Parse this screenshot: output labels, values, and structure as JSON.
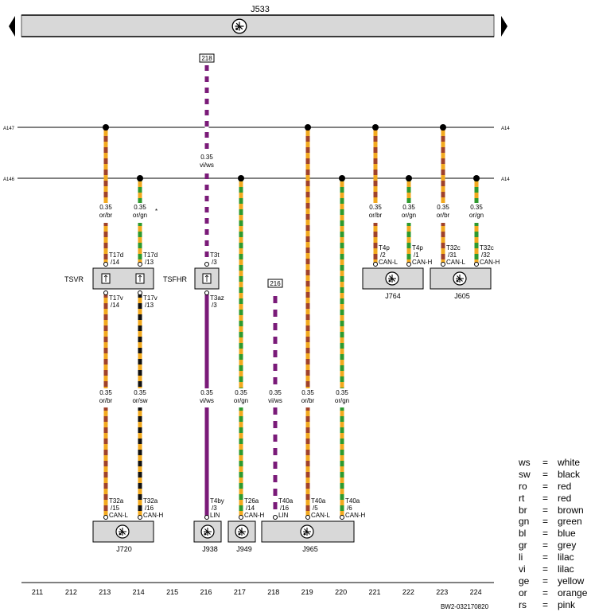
{
  "colors": {
    "or": "#f2a91e",
    "br": "#a0422a",
    "gn": "#2e9a2e",
    "sw": "#111111",
    "vi": "#7a1a78",
    "ws": "#ffffff",
    "box": "#d8d8d8"
  },
  "bus": {
    "label": "J533"
  },
  "refs": {
    "r218": "218",
    "r216": "216"
  },
  "lines": {
    "A147": {
      "left": "A147",
      "right": "A14"
    },
    "A146": {
      "left": "A146",
      "right": "A14"
    }
  },
  "wires": {
    "w213a": {
      "size": "0.35",
      "color": "or/br"
    },
    "w214a": {
      "size": "0.35",
      "color": "or/gn"
    },
    "w216top": {
      "size": "0.35",
      "color": "vi/ws"
    },
    "w221": {
      "size": "0.35",
      "color": "or/br"
    },
    "w222": {
      "size": "0.35",
      "color": "or/gn"
    },
    "w223": {
      "size": "0.35",
      "color": "or/br"
    },
    "w224": {
      "size": "0.35",
      "color": "or/gn"
    },
    "w213b": {
      "size": "0.35",
      "color": "or/br"
    },
    "w214b": {
      "size": "0.35",
      "color": "or/sw"
    },
    "w216b": {
      "size": "0.35",
      "color": "vi/ws"
    },
    "w217": {
      "size": "0.35",
      "color": "or/gn"
    },
    "w218": {
      "size": "0.35",
      "color": "vi/ws"
    },
    "w219": {
      "size": "0.35",
      "color": "or/br"
    },
    "w220": {
      "size": "0.35",
      "color": "or/gn"
    }
  },
  "pins": {
    "p213top": {
      "name": "T17d",
      "num": "/14"
    },
    "p214top": {
      "name": "T17d",
      "num": "/13"
    },
    "p216top": {
      "name": "T3t",
      "num": "/3"
    },
    "p213bot": {
      "name": "T17v",
      "num": "/14"
    },
    "p214bot": {
      "name": "T17v",
      "num": "/13"
    },
    "p216mid": {
      "name": "T3az",
      "num": "/3"
    },
    "p221": {
      "name": "T4p",
      "num": "/2",
      "sig": "CAN-L"
    },
    "p222": {
      "name": "T4p",
      "num": "/1",
      "sig": "CAN-H"
    },
    "p223": {
      "name": "T32c",
      "num": "/31",
      "sig": "CAN-L"
    },
    "p224": {
      "name": "T32c",
      "num": "/32",
      "sig": "CAN-H"
    },
    "p213low": {
      "name": "T32a",
      "num": "/15",
      "sig": "CAN-L"
    },
    "p214low": {
      "name": "T32a",
      "num": "/16",
      "sig": "CAN-H"
    },
    "p216low": {
      "name": "T4by",
      "num": "/3",
      "sig": "LIN"
    },
    "p217low": {
      "name": "T26a",
      "num": "/14",
      "sig": "CAN-H"
    },
    "p218low": {
      "name": "T40a",
      "num": "/16",
      "sig": "LIN"
    },
    "p219low": {
      "name": "T40a",
      "num": "/5",
      "sig": "CAN-L"
    },
    "p220low": {
      "name": "T40a",
      "num": "/6",
      "sig": "CAN-H"
    }
  },
  "components": {
    "tsvr": "TSVR",
    "tsfhr": "TSFHR",
    "j764": "J764",
    "j605": "J605",
    "j720": "J720",
    "j938": "J938",
    "j949": "J949",
    "j965": "J965"
  },
  "columns": [
    "211",
    "212",
    "213",
    "214",
    "215",
    "216",
    "217",
    "218",
    "219",
    "220",
    "221",
    "222",
    "223",
    "224"
  ],
  "footer": {
    "code": "BW2-032170820"
  },
  "legend": [
    {
      "code": "ws",
      "eq": "=",
      "name": "white"
    },
    {
      "code": "sw",
      "eq": "=",
      "name": "black"
    },
    {
      "code": "ro",
      "eq": "=",
      "name": "red"
    },
    {
      "code": "rt",
      "eq": "=",
      "name": "red"
    },
    {
      "code": "br",
      "eq": "=",
      "name": "brown"
    },
    {
      "code": "gn",
      "eq": "=",
      "name": "green"
    },
    {
      "code": "bl",
      "eq": "=",
      "name": "blue"
    },
    {
      "code": "gr",
      "eq": "=",
      "name": "grey"
    },
    {
      "code": "li",
      "eq": "=",
      "name": "lilac"
    },
    {
      "code": "vi",
      "eq": "=",
      "name": "lilac"
    },
    {
      "code": "ge",
      "eq": "=",
      "name": "yellow"
    },
    {
      "code": "or",
      "eq": "=",
      "name": "orange"
    },
    {
      "code": "rs",
      "eq": "=",
      "name": "pink"
    }
  ]
}
